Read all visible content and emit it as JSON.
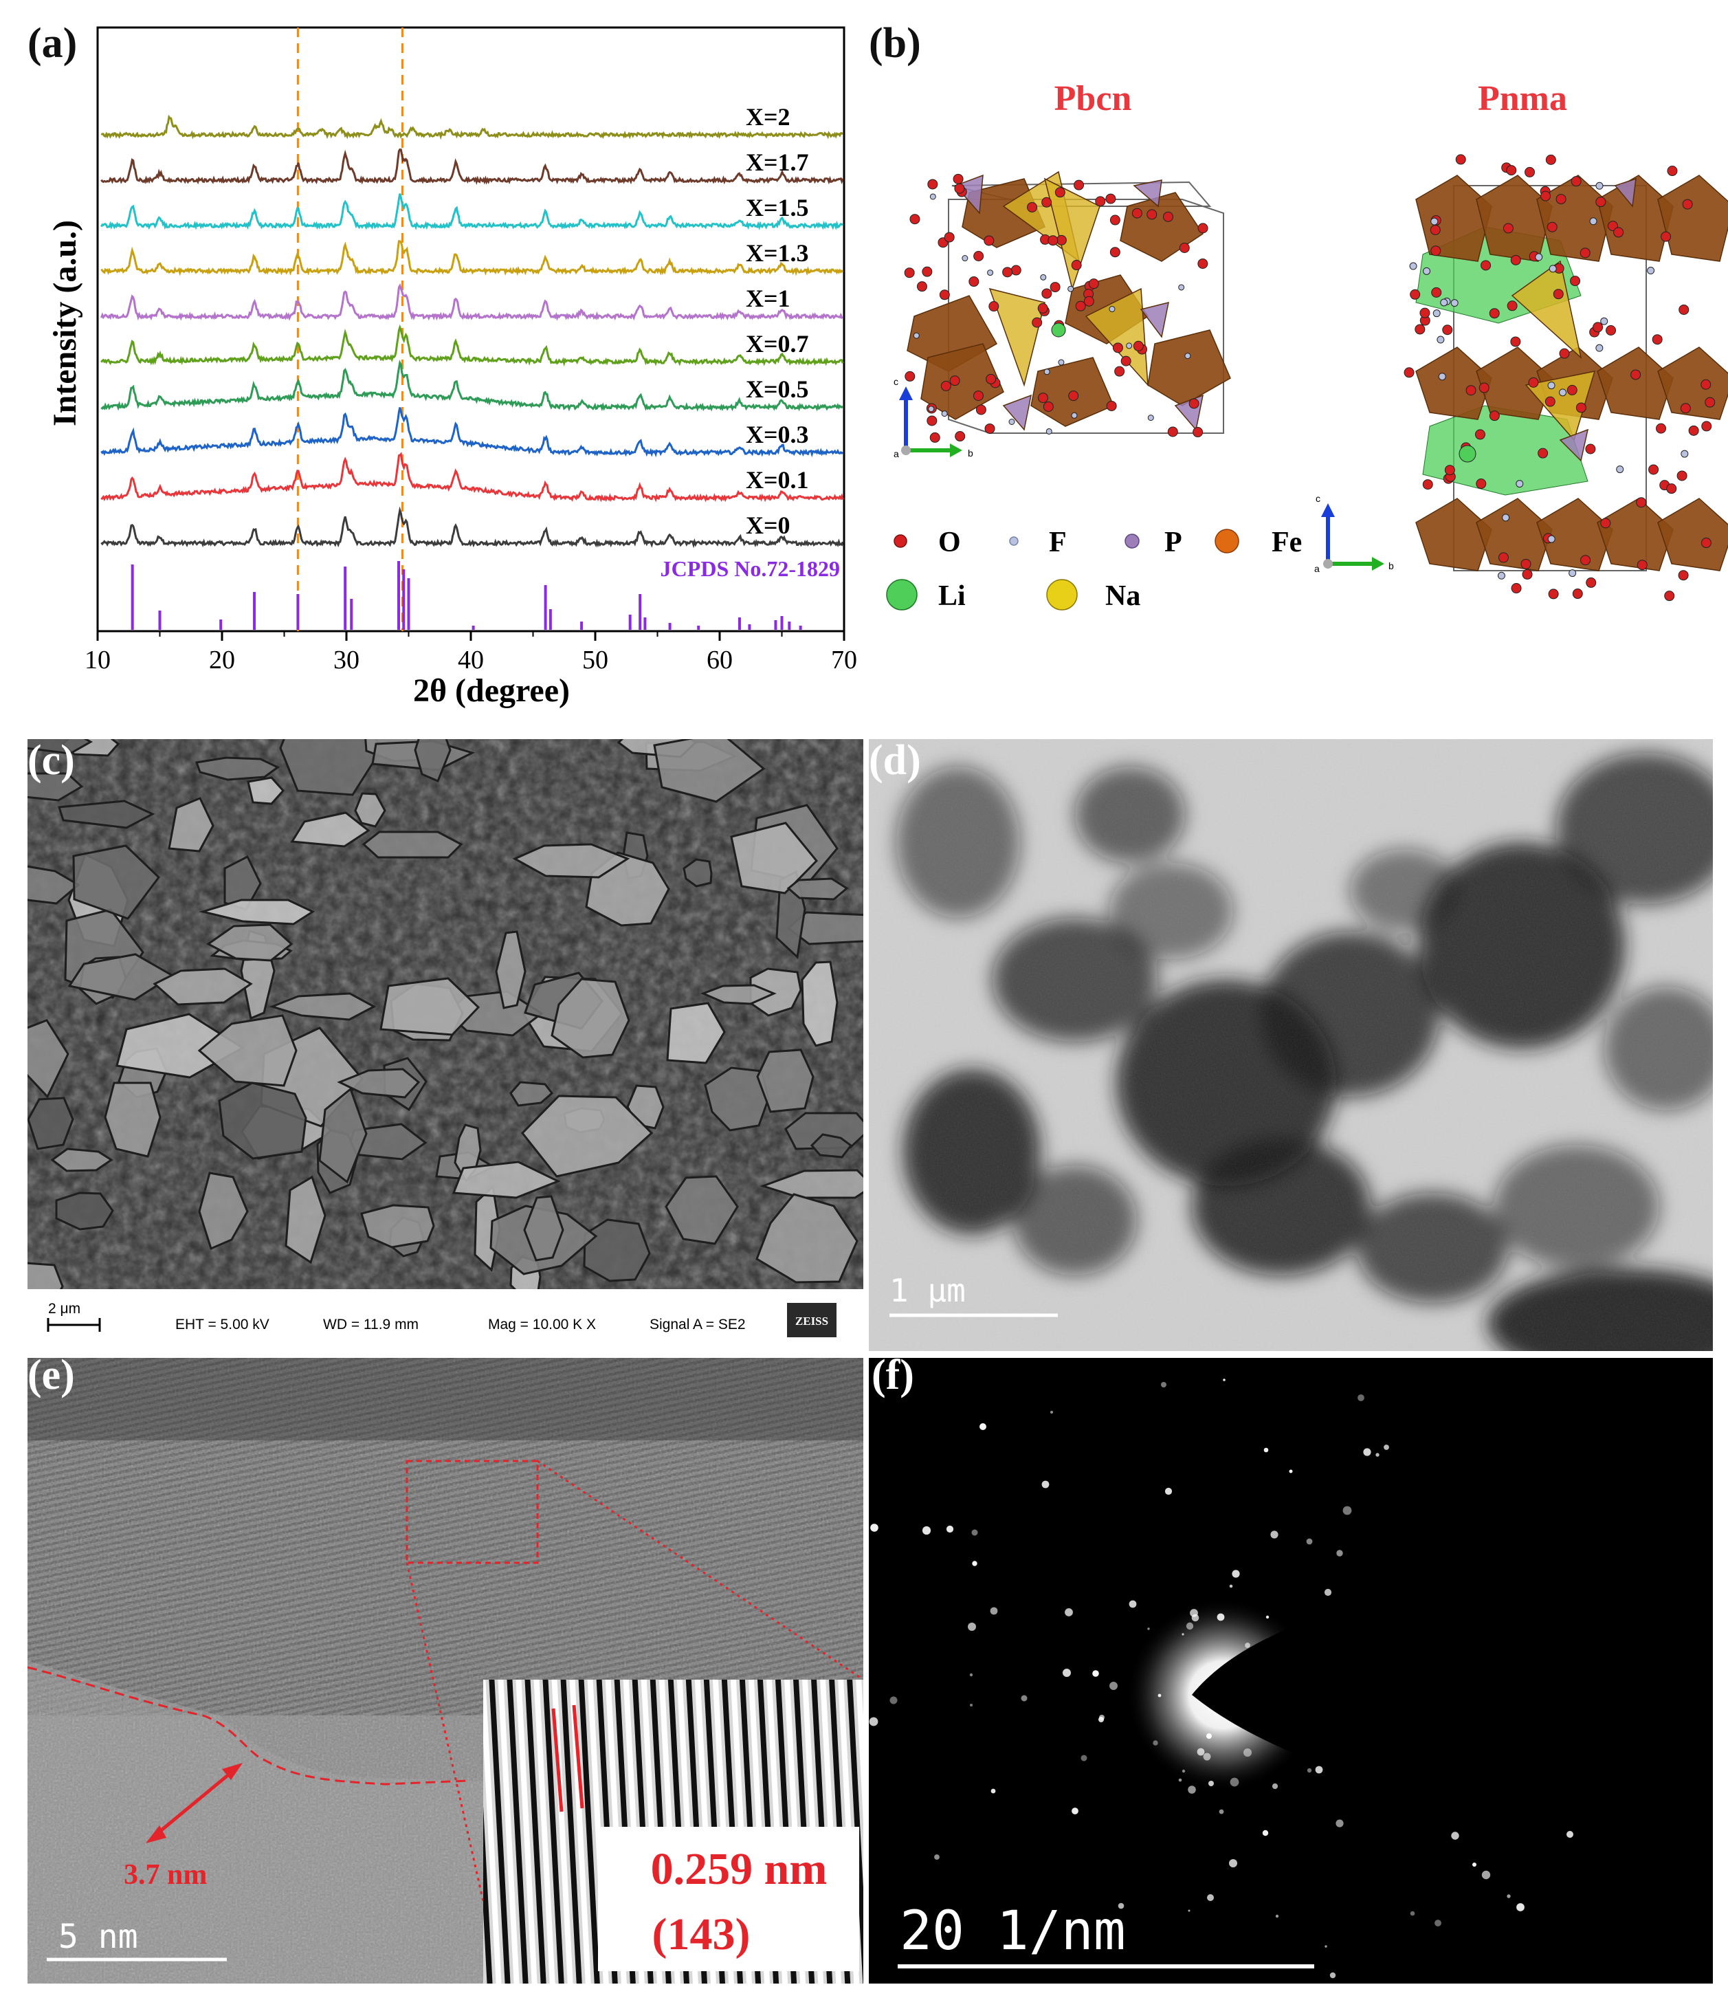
{
  "panels": {
    "a": {
      "label": "(a)"
    },
    "b": {
      "label": "(b)",
      "title_left": "Pbcn",
      "title_right": "Pnma",
      "legend": {
        "O": "O",
        "F": "F",
        "P": "P",
        "Fe": "Fe",
        "Li": "Li",
        "Na": "Na"
      },
      "axis_c": "c",
      "axis_b": "b",
      "axis_a": "a",
      "colors": {
        "O": "#d42020",
        "F": "#b9c3df",
        "P": "#9c7fb8",
        "Fe": "#e06a12",
        "Li": "#4fcf5a",
        "Na": "#e8cf18",
        "fe_poly": "#8c4a14",
        "na_poly": "#d8b426"
      }
    },
    "c": {
      "label": "(c)",
      "info": {
        "scale": "2 μm",
        "eht": "EHT =  5.00 kV",
        "wd": "WD = 11.9 mm",
        "mag": "Mag =   10.00 K X",
        "signal": "Signal A = SE2",
        "brand": "ZEISS"
      }
    },
    "d": {
      "label": "(d)",
      "scale": "1 μm"
    },
    "e": {
      "label": "(e)",
      "scale": "5 nm",
      "thickness": "3.7 nm",
      "dspacing": "0.259 nm",
      "plane": "(143)"
    },
    "f": {
      "label": "(f)",
      "scale": "20 1/nm"
    }
  },
  "chart_data": {
    "type": "line",
    "xlabel": "2θ (degree)",
    "ylabel": "Intensity (a.u.)",
    "xlim": [
      10,
      70
    ],
    "xticks": [
      10,
      20,
      30,
      40,
      50,
      60,
      70
    ],
    "reference_lines_2theta": [
      26.1,
      34.5
    ],
    "reference": {
      "name": "JCPDS No.72-1829",
      "color": "#8a2be2",
      "peaks": [
        [
          12.8,
          0.95
        ],
        [
          15.0,
          0.28
        ],
        [
          19.9,
          0.15
        ],
        [
          22.6,
          0.55
        ],
        [
          26.1,
          0.52
        ],
        [
          29.9,
          0.92
        ],
        [
          30.4,
          0.45
        ],
        [
          34.2,
          1.0
        ],
        [
          34.6,
          0.88
        ],
        [
          35.0,
          0.75
        ],
        [
          40.2,
          0.06
        ],
        [
          46.0,
          0.65
        ],
        [
          46.4,
          0.3
        ],
        [
          48.9,
          0.12
        ],
        [
          52.8,
          0.22
        ],
        [
          53.6,
          0.52
        ],
        [
          54.0,
          0.18
        ],
        [
          56.0,
          0.1
        ],
        [
          58.3,
          0.06
        ],
        [
          61.6,
          0.18
        ],
        [
          62.4,
          0.08
        ],
        [
          64.5,
          0.14
        ],
        [
          65.0,
          0.2
        ],
        [
          65.6,
          0.12
        ],
        [
          66.5,
          0.06
        ]
      ]
    },
    "series": [
      {
        "name": "X=0",
        "color": "#3c3c3c",
        "baseline_rise": 0.0
      },
      {
        "name": "X=0.1",
        "color": "#e8363a",
        "baseline_rise": 0.55
      },
      {
        "name": "X=0.3",
        "color": "#1e63c8",
        "baseline_rise": 0.55
      },
      {
        "name": "X=0.5",
        "color": "#2e9b56",
        "baseline_rise": 0.5
      },
      {
        "name": "X=0.7",
        "color": "#5fa11a",
        "baseline_rise": 0.15
      },
      {
        "name": "X=1",
        "color": "#b474cc",
        "baseline_rise": 0.0
      },
      {
        "name": "X=1.3",
        "color": "#c8a010",
        "baseline_rise": 0.0
      },
      {
        "name": "X=1.5",
        "color": "#22c2c8",
        "baseline_rise": 0.0
      },
      {
        "name": "X=1.7",
        "color": "#6e3a2a",
        "baseline_rise": 0.0
      },
      {
        "name": "X=2",
        "color": "#8e8e1a",
        "baseline_rise": 0.0
      }
    ],
    "sample_peaks": [
      [
        12.8,
        1.0
      ],
      [
        15.0,
        0.35
      ],
      [
        22.6,
        0.75
      ],
      [
        26.1,
        0.85
      ],
      [
        29.9,
        1.3
      ],
      [
        30.4,
        0.6
      ],
      [
        34.3,
        1.6
      ],
      [
        34.8,
        1.1
      ],
      [
        38.8,
        0.9
      ],
      [
        46.0,
        0.7
      ],
      [
        48.9,
        0.25
      ],
      [
        53.6,
        0.6
      ],
      [
        56.0,
        0.45
      ],
      [
        61.6,
        0.3
      ],
      [
        65.0,
        0.35
      ]
    ],
    "x2_peaks": [
      [
        15.8,
        0.9
      ],
      [
        16.3,
        0.45
      ],
      [
        22.6,
        0.4
      ],
      [
        26.1,
        0.35
      ],
      [
        28.0,
        0.3
      ],
      [
        29.5,
        0.3
      ],
      [
        32.3,
        0.45
      ],
      [
        32.8,
        0.65
      ],
      [
        33.5,
        0.3
      ],
      [
        35.3,
        0.35
      ],
      [
        38.2,
        0.25
      ],
      [
        41.0,
        0.25
      ]
    ]
  }
}
